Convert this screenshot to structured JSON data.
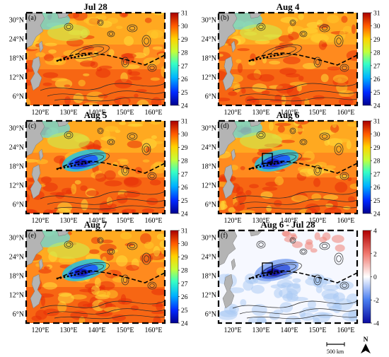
{
  "panels": [
    {
      "label": "(a)",
      "title": "Jul 28",
      "map": "sst",
      "colorbar": "sst",
      "track_end": 0.78,
      "box": false
    },
    {
      "label": "(b)",
      "title": "Aug 4",
      "map": "sst",
      "colorbar": "sst",
      "track_end": 0.78,
      "box": false
    },
    {
      "label": "(c)",
      "title": "Aug 5",
      "map": "sst",
      "colorbar": "sst",
      "track_end": 0.78,
      "box": false
    },
    {
      "label": "(d)",
      "title": "Aug 6",
      "map": "sst",
      "colorbar": "sst",
      "track_end": 0.78,
      "box": true
    },
    {
      "label": "(e)",
      "title": "Aug 7",
      "map": "sst",
      "colorbar": "sst",
      "track_end": 0.78,
      "box": false
    },
    {
      "label": "(f)",
      "title": "Aug 6 - Jul 28",
      "map": "diff",
      "colorbar": "diff",
      "track_end": 0.78,
      "box": true
    }
  ],
  "colorbars": {
    "sst": {
      "ticks": [
        "31",
        "30",
        "29",
        "28",
        "27",
        "26",
        "25",
        "24"
      ],
      "min": 24,
      "max": 31
    },
    "diff": {
      "ticks": [
        "4",
        "2",
        "0",
        "-2",
        "-4"
      ],
      "min": -4,
      "max": 4
    }
  },
  "axes": {
    "lat_ticks": [
      "30°N",
      "24°N",
      "18°N",
      "12°N",
      "6°N"
    ],
    "lon_ticks": [
      "120°E",
      "130°E",
      "140°E",
      "150°E",
      "160°E"
    ]
  },
  "scale_bar": {
    "label": "500 km"
  },
  "north_arrow": {
    "label": "N"
  }
}
